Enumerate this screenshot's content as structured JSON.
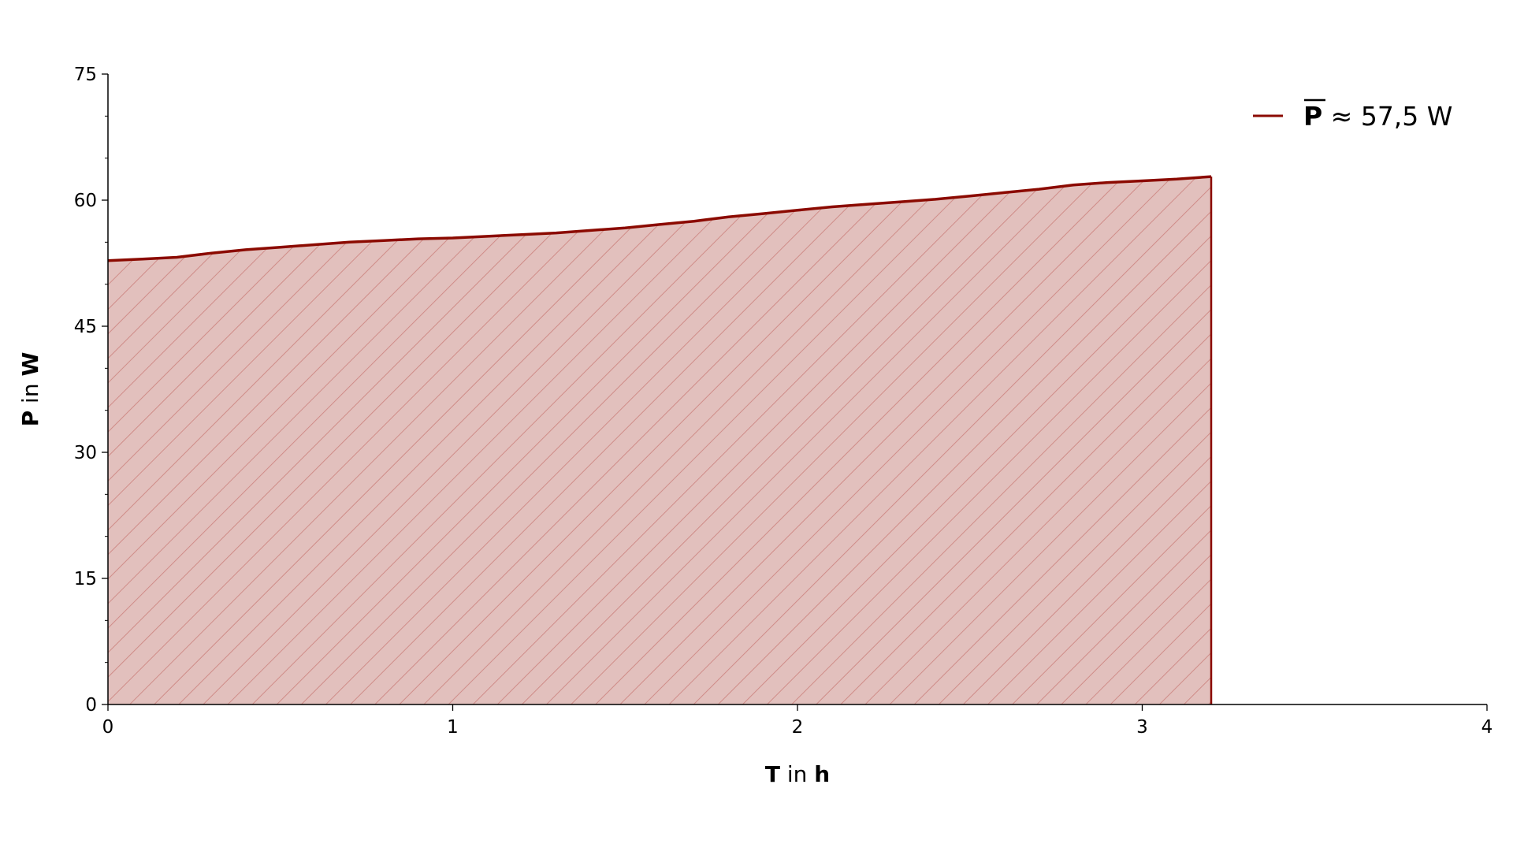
{
  "chart_data": {
    "type": "area",
    "xlabel": {
      "bold1": "T",
      "mid": " in ",
      "bold2": "h"
    },
    "ylabel": {
      "bold1": "P",
      "mid": " in ",
      "bold2": "W"
    },
    "xlim": [
      0,
      4
    ],
    "ylim": [
      0,
      75
    ],
    "xticks": [
      "0",
      "1",
      "2",
      "3",
      "4"
    ],
    "yticks": [
      "0",
      "15",
      "30",
      "45",
      "60",
      "75"
    ],
    "grid": false,
    "legend_position": "top-right",
    "legend": {
      "symbol": "P",
      "text": " ≈ 57,5 W"
    },
    "series": [
      {
        "name": "P̄ ≈ 57,5 W",
        "color": "#8b0a00",
        "fill": "#e2c0bd",
        "hatch": "#cf8c88",
        "x": [
          0,
          0.1,
          0.2,
          0.3,
          0.4,
          0.5,
          0.6,
          0.7,
          0.8,
          0.9,
          1.0,
          1.1,
          1.2,
          1.3,
          1.4,
          1.5,
          1.6,
          1.7,
          1.8,
          1.9,
          2.0,
          2.1,
          2.2,
          2.3,
          2.4,
          2.5,
          2.6,
          2.7,
          2.8,
          2.9,
          3.0,
          3.1,
          3.2
        ],
        "y": [
          52.8,
          53.0,
          53.2,
          53.7,
          54.1,
          54.4,
          54.7,
          55.0,
          55.2,
          55.4,
          55.5,
          55.7,
          55.9,
          56.1,
          56.4,
          56.7,
          57.1,
          57.5,
          58.0,
          58.4,
          58.8,
          59.2,
          59.5,
          59.8,
          60.1,
          60.5,
          60.9,
          61.3,
          61.8,
          62.1,
          62.3,
          62.5,
          62.8
        ]
      }
    ]
  }
}
